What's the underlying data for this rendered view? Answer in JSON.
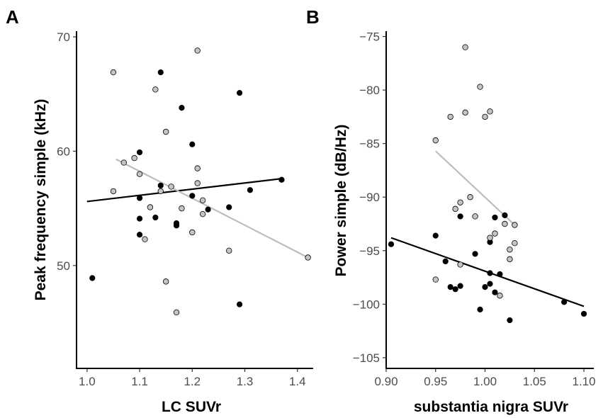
{
  "chart_data": [
    {
      "type": "scatter",
      "panel_label": "A",
      "title": "",
      "xlabel": "LC SUVr",
      "ylabel": "Peak frequency simple (kHz)",
      "xlim": [
        0.98,
        1.43
      ],
      "ylim": [
        41,
        70.5
      ],
      "xticks": [
        1.0,
        1.1,
        1.2,
        1.3,
        1.4
      ],
      "xtick_labels": [
        "1.0",
        "1.1",
        "1.2",
        "1.3",
        "1.4"
      ],
      "yticks": [
        50,
        60,
        70
      ],
      "ytick_labels": [
        "50",
        "60",
        "70"
      ],
      "grid": false,
      "series": [
        {
          "name": "black",
          "color": "#000000",
          "points": [
            [
              1.01,
              48.9
            ],
            [
              1.1,
              54.1
            ],
            [
              1.1,
              55.9
            ],
            [
              1.1,
              52.7
            ],
            [
              1.1,
              59.9
            ],
            [
              1.13,
              54.2
            ],
            [
              1.14,
              66.9
            ],
            [
              1.14,
              57.0
            ],
            [
              1.17,
              53.5
            ],
            [
              1.17,
              53.7
            ],
            [
              1.18,
              63.8
            ],
            [
              1.2,
              60.6
            ],
            [
              1.2,
              56.1
            ],
            [
              1.23,
              54.9
            ],
            [
              1.27,
              55.1
            ],
            [
              1.29,
              65.1
            ],
            [
              1.29,
              46.6
            ],
            [
              1.31,
              56.6
            ],
            [
              1.37,
              57.5
            ]
          ],
          "fit": [
            [
              1.0,
              55.6
            ],
            [
              1.37,
              57.6
            ]
          ]
        },
        {
          "name": "gray",
          "color": "#c4c4c4",
          "points": [
            [
              1.05,
              66.9
            ],
            [
              1.05,
              56.5
            ],
            [
              1.07,
              59.0
            ],
            [
              1.09,
              59.4
            ],
            [
              1.1,
              58.0
            ],
            [
              1.11,
              52.3
            ],
            [
              1.12,
              55.1
            ],
            [
              1.13,
              65.4
            ],
            [
              1.14,
              56.5
            ],
            [
              1.15,
              61.7
            ],
            [
              1.15,
              48.6
            ],
            [
              1.16,
              56.9
            ],
            [
              1.17,
              45.9
            ],
            [
              1.18,
              55.0
            ],
            [
              1.2,
              52.9
            ],
            [
              1.21,
              58.5
            ],
            [
              1.21,
              57.2
            ],
            [
              1.21,
              68.8
            ],
            [
              1.22,
              55.7
            ],
            [
              1.22,
              54.5
            ],
            [
              1.27,
              51.3
            ],
            [
              1.42,
              50.7
            ]
          ],
          "fit": [
            [
              1.055,
              59.3
            ],
            [
              1.42,
              50.7
            ]
          ]
        }
      ]
    },
    {
      "type": "scatter",
      "panel_label": "B",
      "title": "",
      "xlabel": "substantia nigra SUVr",
      "ylabel": "Power simple (dB/Hz)",
      "xlim": [
        0.9,
        1.11
      ],
      "ylim": [
        -106,
        -74.5
      ],
      "xticks": [
        0.9,
        0.95,
        1.0,
        1.05,
        1.1
      ],
      "xtick_labels": [
        "0.90",
        "0.95",
        "1.00",
        "1.05",
        "1.10"
      ],
      "yticks": [
        -75,
        -80,
        -85,
        -90,
        -95,
        -100,
        -105
      ],
      "ytick_labels": [
        "−75",
        "−80",
        "−85",
        "−90",
        "−95",
        "−100",
        "−105"
      ],
      "grid": false,
      "series": [
        {
          "name": "black",
          "color": "#000000",
          "points": [
            [
              0.905,
              -94.4
            ],
            [
              0.95,
              -93.6
            ],
            [
              0.96,
              -96.0
            ],
            [
              0.965,
              -98.4
            ],
            [
              0.97,
              -98.6
            ],
            [
              0.975,
              -98.3
            ],
            [
              0.975,
              -91.8
            ],
            [
              0.99,
              -95.3
            ],
            [
              0.995,
              -100.5
            ],
            [
              1.0,
              -98.4
            ],
            [
              1.005,
              -94.2
            ],
            [
              1.005,
              -97.1
            ],
            [
              1.005,
              -98.1
            ],
            [
              1.01,
              -98.9
            ],
            [
              1.01,
              -91.9
            ],
            [
              1.015,
              -97.2
            ],
            [
              1.02,
              -91.7
            ],
            [
              1.025,
              -101.5
            ],
            [
              1.08,
              -99.8
            ],
            [
              1.1,
              -100.9
            ]
          ],
          "fit": [
            [
              0.905,
              -93.8
            ],
            [
              1.1,
              -100.2
            ]
          ]
        },
        {
          "name": "gray",
          "color": "#c4c4c4",
          "points": [
            [
              0.95,
              -84.7
            ],
            [
              0.95,
              -97.7
            ],
            [
              0.965,
              -82.5
            ],
            [
              0.97,
              -91.1
            ],
            [
              0.975,
              -90.5
            ],
            [
              0.975,
              -96.3
            ],
            [
              0.98,
              -76.0
            ],
            [
              0.98,
              -82.1
            ],
            [
              0.985,
              -90.0
            ],
            [
              0.99,
              -91.8
            ],
            [
              0.995,
              -79.7
            ],
            [
              1.0,
              -82.5
            ],
            [
              1.005,
              -82.0
            ],
            [
              1.005,
              -93.8
            ],
            [
              1.01,
              -93.4
            ],
            [
              1.015,
              -99.2
            ],
            [
              1.02,
              -92.5
            ],
            [
              1.025,
              -94.9
            ],
            [
              1.025,
              -95.8
            ],
            [
              1.03,
              -94.3
            ],
            [
              1.03,
              -92.6
            ]
          ],
          "fit": [
            [
              0.95,
              -85.7
            ],
            [
              1.03,
              -92.6
            ]
          ]
        }
      ]
    }
  ]
}
